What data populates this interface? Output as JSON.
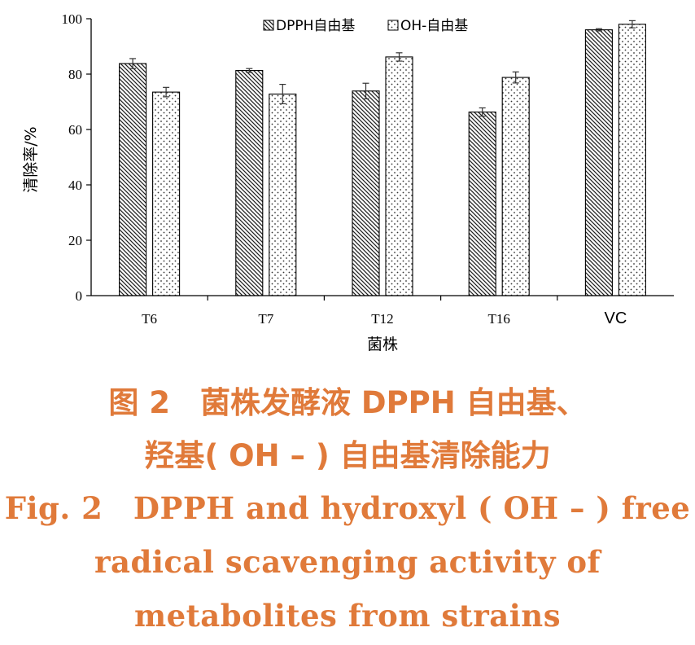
{
  "chart_data": {
    "type": "bar",
    "categories": [
      "T6",
      "T7",
      "T12",
      "T16",
      "VC"
    ],
    "series": [
      {
        "name": "DPPH自由基",
        "values": [
          83.8,
          81.3,
          73.9,
          66.3,
          96.0
        ],
        "errors": [
          1.8,
          0.7,
          2.8,
          1.5,
          0.4
        ],
        "pattern": "diagonal-hatch"
      },
      {
        "name": "OH-自由基",
        "values": [
          73.5,
          72.8,
          86.2,
          78.8,
          98.0
        ],
        "errors": [
          1.7,
          3.5,
          1.5,
          2.0,
          1.3
        ],
        "pattern": "dots"
      }
    ],
    "xlabel": "菌株",
    "ylabel": "清除率/%",
    "ylim": [
      0,
      100
    ],
    "yticks": [
      "0",
      "20",
      "40",
      "60",
      "80",
      "100"
    ],
    "grid": false,
    "legend_position": "top-center"
  },
  "caption": {
    "zh_line1": "图 2　菌株发酵液 DPPH 自由基、",
    "zh_line2": "羟基( OH – ) 自由基清除能力",
    "en_line1": "Fig. 2　DPPH and hydroxyl ( OH – ) free",
    "en_line2": "radical scavenging activity of",
    "en_line3": "metabolites from strains"
  },
  "colors": {
    "caption": "#e07a3a",
    "bar_outline": "#000000"
  }
}
